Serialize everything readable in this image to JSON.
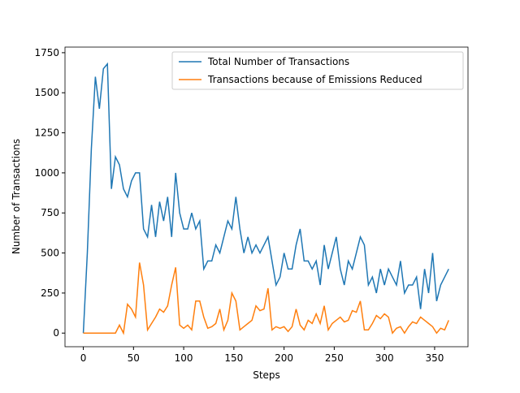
{
  "chart_data": {
    "type": "line",
    "x_label": "Steps",
    "y_label": "Number of Transactions",
    "x": [
      0,
      4,
      8,
      12,
      16,
      20,
      24,
      28,
      32,
      36,
      40,
      44,
      48,
      52,
      56,
      60,
      64,
      68,
      72,
      76,
      80,
      84,
      88,
      92,
      96,
      100,
      104,
      108,
      112,
      116,
      120,
      124,
      128,
      132,
      136,
      140,
      144,
      148,
      152,
      156,
      160,
      164,
      168,
      172,
      176,
      180,
      184,
      188,
      192,
      196,
      200,
      204,
      208,
      212,
      216,
      220,
      224,
      228,
      232,
      236,
      240,
      244,
      248,
      252,
      256,
      260,
      264,
      268,
      272,
      276,
      280,
      284,
      288,
      292,
      296,
      300,
      304,
      308,
      312,
      316,
      320,
      324,
      328,
      332,
      336,
      340,
      344,
      348,
      352,
      356,
      360,
      364
    ],
    "series": [
      {
        "name": "Total Number of Transactions",
        "color": "#1f77b4",
        "values": [
          0,
          500,
          1150,
          1600,
          1400,
          1650,
          1680,
          900,
          1100,
          1050,
          900,
          850,
          950,
          1000,
          1000,
          650,
          600,
          800,
          600,
          820,
          700,
          850,
          600,
          1000,
          750,
          650,
          650,
          750,
          650,
          700,
          400,
          450,
          450,
          550,
          500,
          600,
          700,
          650,
          850,
          650,
          500,
          600,
          500,
          550,
          500,
          550,
          600,
          450,
          300,
          350,
          500,
          400,
          400,
          550,
          650,
          450,
          450,
          400,
          450,
          300,
          550,
          400,
          500,
          600,
          400,
          300,
          450,
          400,
          500,
          600,
          550,
          300,
          350,
          250,
          400,
          300,
          400,
          350,
          300,
          450,
          250,
          300,
          300,
          350,
          150,
          400,
          250,
          500,
          200,
          300,
          350,
          400
        ]
      },
      {
        "name": "Transactions because of Emissions Reduced",
        "color": "#ff7f0e",
        "values": [
          0,
          0,
          0,
          0,
          0,
          0,
          0,
          0,
          0,
          50,
          0,
          180,
          150,
          100,
          440,
          300,
          20,
          60,
          100,
          150,
          130,
          170,
          300,
          410,
          50,
          30,
          50,
          20,
          200,
          200,
          100,
          30,
          40,
          60,
          150,
          20,
          80,
          250,
          200,
          20,
          40,
          60,
          80,
          170,
          140,
          150,
          280,
          20,
          40,
          30,
          40,
          10,
          40,
          150,
          50,
          20,
          80,
          60,
          120,
          60,
          170,
          20,
          60,
          80,
          100,
          70,
          80,
          140,
          130,
          200,
          20,
          20,
          60,
          110,
          90,
          120,
          100,
          0,
          30,
          40,
          0,
          40,
          70,
          60,
          100,
          80,
          60,
          40,
          0,
          30,
          20,
          80
        ]
      }
    ],
    "xlim": [
      -18.25,
      383.25
    ],
    "ylim": [
      -85,
      1785
    ],
    "xticks": [
      0,
      50,
      100,
      150,
      200,
      250,
      300,
      350
    ],
    "yticks": [
      0,
      250,
      500,
      750,
      1000,
      1250,
      1500,
      1750
    ],
    "legend": "upper right"
  }
}
